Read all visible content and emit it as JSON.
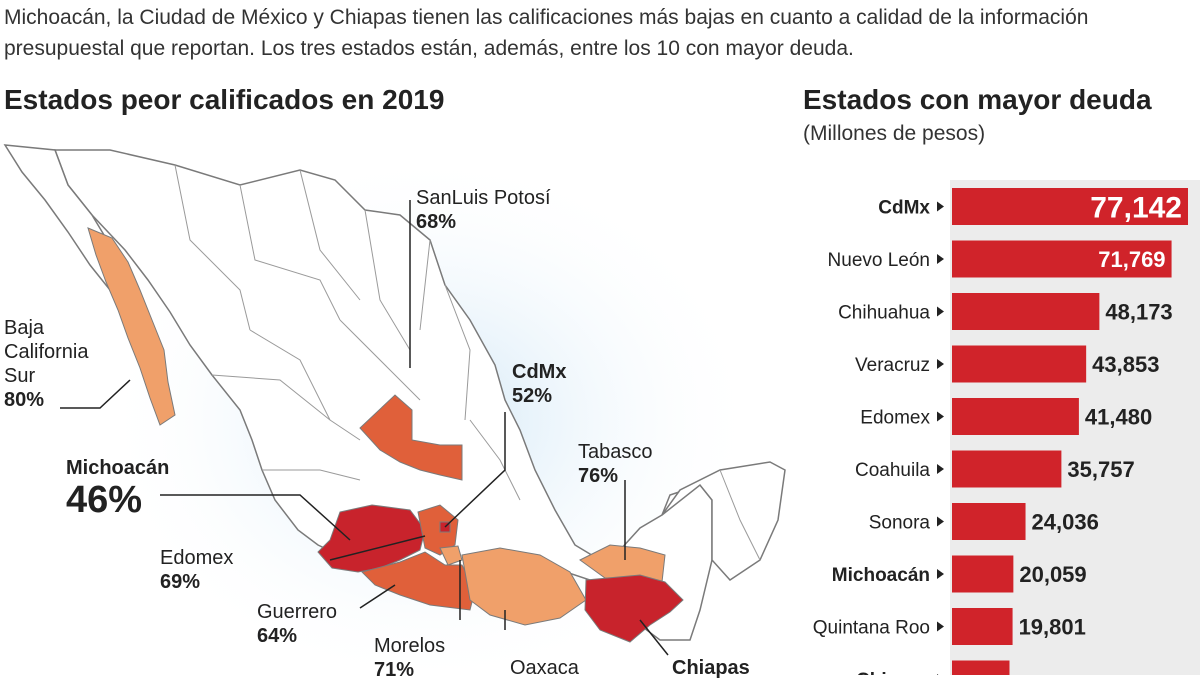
{
  "intro_text": "Michoacán, la Ciudad de México y Chiapas tienen las calificaciones más bajas en cuanto a calidad de la información presupuestal que reportan. Los tres estados están, además, entre los 10 con mayor deuda.",
  "map": {
    "title": "Estados peor calificados en 2019",
    "colors": {
      "worst": "#c8232c",
      "mid": "#e0603a",
      "light": "#f0a06a",
      "outline": "#7a7a7a",
      "fill": "#ffffff"
    },
    "states": [
      {
        "id": "bcs",
        "name": "Baja California Sur",
        "lines": [
          "Baja",
          "California",
          "Sur"
        ],
        "score": "80%",
        "bold": false,
        "big": false
      },
      {
        "id": "slp",
        "name": "SanLuis Potosí",
        "lines": [
          "SanLuis Potosí"
        ],
        "score": "68%",
        "bold": false,
        "big": false
      },
      {
        "id": "cdmx",
        "name": "CdMx",
        "lines": [
          "CdMx"
        ],
        "score": "52%",
        "bold": true,
        "big": false
      },
      {
        "id": "tab",
        "name": "Tabasco",
        "lines": [
          "Tabasco"
        ],
        "score": "76%",
        "bold": false,
        "big": false
      },
      {
        "id": "mich",
        "name": "Michoacán",
        "lines": [
          "Michoacán"
        ],
        "score": "46%",
        "bold": true,
        "big": true
      },
      {
        "id": "edomex",
        "name": "Edomex",
        "lines": [
          "Edomex"
        ],
        "score": "69%",
        "bold": false,
        "big": false
      },
      {
        "id": "gro",
        "name": "Guerrero",
        "lines": [
          "Guerrero"
        ],
        "score": "64%",
        "bold": false,
        "big": false
      },
      {
        "id": "mor",
        "name": "Morelos",
        "lines": [
          "Morelos"
        ],
        "score": "71%",
        "bold": false,
        "big": false
      },
      {
        "id": "oax",
        "name": "Oaxaca",
        "lines": [
          "Oaxaca"
        ],
        "score": "",
        "bold": false,
        "big": false
      },
      {
        "id": "chis",
        "name": "Chiapas",
        "lines": [
          "Chiapas"
        ],
        "score": "",
        "bold": true,
        "big": false
      }
    ]
  },
  "chart_data": {
    "type": "bar",
    "orientation": "horizontal",
    "title": "Estados con mayor deuda",
    "subtitle": "(Millones de pesos)",
    "categories": [
      "CdMx",
      "Nuevo León",
      "Chihuahua",
      "Veracruz",
      "Edomex",
      "Coahuila",
      "Sonora",
      "Michoacán",
      "Quintana Roo",
      "Chiapas"
    ],
    "values": [
      77142,
      71769,
      48173,
      43853,
      41480,
      35757,
      24036,
      20059,
      19801,
      18793
    ],
    "labels": [
      "77,142",
      "71,769",
      "48,173",
      "43,853",
      "41,480",
      "35,757",
      "24,036",
      "20,059",
      "19,801",
      ""
    ],
    "bold_categories": [
      "CdMx",
      "Michoacán",
      "Chiapas"
    ],
    "bar_color": "#d0232a",
    "xlim": [
      0,
      77142
    ],
    "grid": false,
    "legend": "none"
  }
}
